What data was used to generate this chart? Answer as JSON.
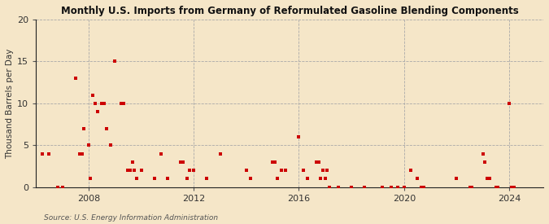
{
  "title": "Monthly U.S. Imports from Germany of Reformulated Gasoline Blending Components",
  "ylabel": "Thousand Barrels per Day",
  "source": "Source: U.S. Energy Information Administration",
  "background_color": "#f5e6c8",
  "plot_bg_color": "#f5e6c8",
  "marker_color": "#cc0000",
  "marker_size": 3.5,
  "ylim": [
    0,
    20
  ],
  "yticks": [
    0,
    5,
    10,
    15,
    20
  ],
  "xlim_start": 2006.0,
  "xlim_end": 2025.3,
  "xticks": [
    2008,
    2012,
    2016,
    2020,
    2024
  ],
  "data_points": [
    [
      2006.25,
      4
    ],
    [
      2006.5,
      4
    ],
    [
      2006.83,
      0
    ],
    [
      2007.0,
      0
    ],
    [
      2007.5,
      13
    ],
    [
      2007.67,
      4
    ],
    [
      2007.75,
      4
    ],
    [
      2007.83,
      7
    ],
    [
      2008.0,
      5
    ],
    [
      2008.08,
      1
    ],
    [
      2008.17,
      11
    ],
    [
      2008.25,
      10
    ],
    [
      2008.33,
      9
    ],
    [
      2008.5,
      10
    ],
    [
      2008.58,
      10
    ],
    [
      2008.67,
      7
    ],
    [
      2008.83,
      5
    ],
    [
      2009.0,
      15
    ],
    [
      2009.25,
      10
    ],
    [
      2009.33,
      10
    ],
    [
      2009.5,
      2
    ],
    [
      2009.58,
      2
    ],
    [
      2009.67,
      3
    ],
    [
      2009.75,
      2
    ],
    [
      2009.83,
      1
    ],
    [
      2010.0,
      2
    ],
    [
      2010.5,
      1
    ],
    [
      2010.75,
      4
    ],
    [
      2011.0,
      1
    ],
    [
      2011.5,
      3
    ],
    [
      2011.58,
      3
    ],
    [
      2011.75,
      1
    ],
    [
      2011.83,
      2
    ],
    [
      2012.0,
      2
    ],
    [
      2012.5,
      1
    ],
    [
      2013.0,
      4
    ],
    [
      2014.0,
      2
    ],
    [
      2014.17,
      1
    ],
    [
      2015.0,
      3
    ],
    [
      2015.08,
      3
    ],
    [
      2015.17,
      1
    ],
    [
      2015.33,
      2
    ],
    [
      2015.5,
      2
    ],
    [
      2016.0,
      6
    ],
    [
      2016.17,
      2
    ],
    [
      2016.33,
      1
    ],
    [
      2016.67,
      3
    ],
    [
      2016.75,
      3
    ],
    [
      2016.83,
      1
    ],
    [
      2016.92,
      2
    ],
    [
      2017.0,
      1
    ],
    [
      2017.08,
      2
    ],
    [
      2017.17,
      0
    ],
    [
      2017.5,
      0
    ],
    [
      2018.0,
      0
    ],
    [
      2018.5,
      0
    ],
    [
      2019.17,
      0
    ],
    [
      2019.5,
      0
    ],
    [
      2019.75,
      0
    ],
    [
      2020.0,
      0
    ],
    [
      2020.25,
      2
    ],
    [
      2020.5,
      1
    ],
    [
      2020.67,
      0
    ],
    [
      2020.75,
      0
    ],
    [
      2022.0,
      1
    ],
    [
      2022.5,
      0
    ],
    [
      2022.58,
      0
    ],
    [
      2023.0,
      4
    ],
    [
      2023.08,
      3
    ],
    [
      2023.17,
      1
    ],
    [
      2023.25,
      1
    ],
    [
      2023.5,
      0
    ],
    [
      2023.58,
      0
    ],
    [
      2024.0,
      10
    ],
    [
      2024.08,
      0
    ],
    [
      2024.17,
      0
    ]
  ]
}
